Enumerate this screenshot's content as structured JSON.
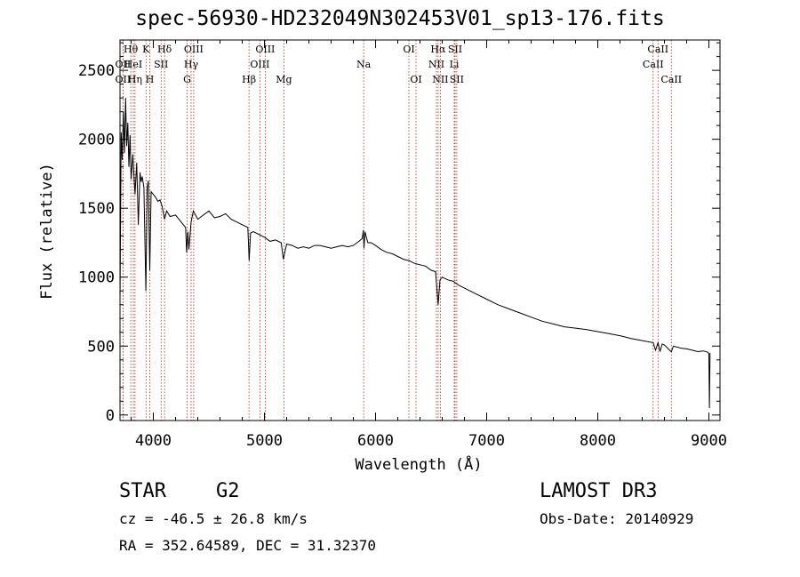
{
  "title": "spec-56930-HD232049N302453V01_sp13-176.fits",
  "info": {
    "object_class": "STAR",
    "subclass": "G2",
    "survey": "LAMOST DR3",
    "redshift_line": "cz = -46.5 ± 26.8 km/s",
    "obs_date_line": "Obs-Date: 20140929",
    "coords_line": "RA = 352.64589, DEC =  31.32370"
  },
  "chart_data": {
    "type": "line",
    "xlabel": "Wavelength (Å)",
    "ylabel": "Flux (relative)",
    "xlim": [
      3700,
      9100
    ],
    "ylim": [
      -40,
      2720
    ],
    "xticks": [
      4000,
      5000,
      6000,
      7000,
      8000,
      9000
    ],
    "yticks": [
      0,
      500,
      1000,
      1500,
      2000,
      2500
    ],
    "grid": false,
    "series": [
      {
        "name": "flux",
        "x": [
          3700,
          3710,
          3720,
          3730,
          3740,
          3750,
          3760,
          3770,
          3780,
          3790,
          3800,
          3815,
          3835,
          3850,
          3865,
          3880,
          3890,
          3900,
          3915,
          3933,
          3945,
          3955,
          3968,
          3980,
          4000,
          4020,
          4040,
          4060,
          4080,
          4101,
          4120,
          4150,
          4200,
          4250,
          4290,
          4300,
          4310,
          4320,
          4340,
          4360,
          4400,
          4450,
          4500,
          4550,
          4600,
          4650,
          4700,
          4750,
          4800,
          4850,
          4862,
          4875,
          4900,
          4950,
          5000,
          5050,
          5100,
          5150,
          5170,
          5183,
          5200,
          5250,
          5300,
          5350,
          5400,
          5450,
          5500,
          5550,
          5600,
          5650,
          5700,
          5750,
          5800,
          5850,
          5880,
          5890,
          5896,
          5905,
          5930,
          5960,
          6000,
          6050,
          6100,
          6150,
          6200,
          6250,
          6300,
          6350,
          6400,
          6450,
          6500,
          6540,
          6563,
          6580,
          6600,
          6650,
          6700,
          6750,
          6800,
          6900,
          7000,
          7100,
          7200,
          7300,
          7400,
          7500,
          7600,
          7700,
          7800,
          7900,
          8000,
          8100,
          8200,
          8300,
          8400,
          8498,
          8520,
          8542,
          8560,
          8580,
          8600,
          8662,
          8680,
          8700,
          8750,
          8800,
          8850,
          8900,
          8950,
          8990,
          9000,
          9005,
          9010
        ],
        "values": [
          810,
          2050,
          1850,
          2200,
          1900,
          2300,
          1950,
          2120,
          1800,
          2030,
          1710,
          1890,
          1600,
          1830,
          1380,
          1760,
          1690,
          1730,
          1650,
          900,
          1650,
          1700,
          1050,
          1620,
          1600,
          1580,
          1550,
          1560,
          1510,
          1420,
          1480,
          1440,
          1450,
          1400,
          1360,
          1180,
          1330,
          1200,
          1400,
          1480,
          1420,
          1450,
          1480,
          1430,
          1440,
          1460,
          1420,
          1400,
          1380,
          1360,
          1120,
          1320,
          1330,
          1310,
          1290,
          1260,
          1270,
          1250,
          1130,
          1180,
          1240,
          1230,
          1210,
          1220,
          1210,
          1230,
          1230,
          1220,
          1210,
          1220,
          1230,
          1220,
          1230,
          1260,
          1280,
          1340,
          1210,
          1330,
          1250,
          1250,
          1230,
          1200,
          1180,
          1170,
          1150,
          1130,
          1120,
          1100,
          1090,
          1080,
          1050,
          1040,
          800,
          980,
          1000,
          980,
          970,
          940,
          920,
          880,
          840,
          800,
          770,
          740,
          710,
          680,
          660,
          640,
          630,
          620,
          605,
          590,
          575,
          555,
          540,
          525,
          470,
          525,
          460,
          515,
          508,
          458,
          500,
          495,
          485,
          480,
          470,
          460,
          465,
          455,
          445,
          50,
          450
        ]
      }
    ],
    "line_markers": [
      {
        "label": "Hθ",
        "x": 3797,
        "row": 1
      },
      {
        "label": "OII",
        "x": 3727,
        "row": 2
      },
      {
        "label": "OII",
        "x": 3727,
        "row": 3
      },
      {
        "label": "HeI",
        "x": 3820,
        "row": 2
      },
      {
        "label": "Hη",
        "x": 3835,
        "row": 3
      },
      {
        "label": "K",
        "x": 3934,
        "row": 1
      },
      {
        "label": "H",
        "x": 3968,
        "row": 3
      },
      {
        "label": "SII",
        "x": 4070,
        "row": 2
      },
      {
        "label": "Hδ",
        "x": 4101,
        "row": 1
      },
      {
        "label": "OIII",
        "x": 4363,
        "row": 1
      },
      {
        "label": "Hγ",
        "x": 4340,
        "row": 2
      },
      {
        "label": "G",
        "x": 4304,
        "row": 3
      },
      {
        "label": "Hβ",
        "x": 4861,
        "row": 3
      },
      {
        "label": "OIII",
        "x": 4959,
        "row": 2
      },
      {
        "label": "OIII",
        "x": 5007,
        "row": 1
      },
      {
        "label": "Mg",
        "x": 5175,
        "row": 3
      },
      {
        "label": "Na",
        "x": 5893,
        "row": 2
      },
      {
        "label": "OI",
        "x": 6300,
        "row": 1
      },
      {
        "label": "OI",
        "x": 6364,
        "row": 3
      },
      {
        "label": "Hα",
        "x": 6563,
        "row": 1
      },
      {
        "label": "NII",
        "x": 6548,
        "row": 2
      },
      {
        "label": "NII",
        "x": 6583,
        "row": 3
      },
      {
        "label": "SII",
        "x": 6716,
        "row": 1
      },
      {
        "label": "Li",
        "x": 6708,
        "row": 2
      },
      {
        "label": "SII",
        "x": 6731,
        "row": 3
      },
      {
        "label": "CaII",
        "x": 8542,
        "row": 1
      },
      {
        "label": "CaII",
        "x": 8498,
        "row": 2
      },
      {
        "label": "CaII",
        "x": 8662,
        "row": 3
      }
    ]
  }
}
